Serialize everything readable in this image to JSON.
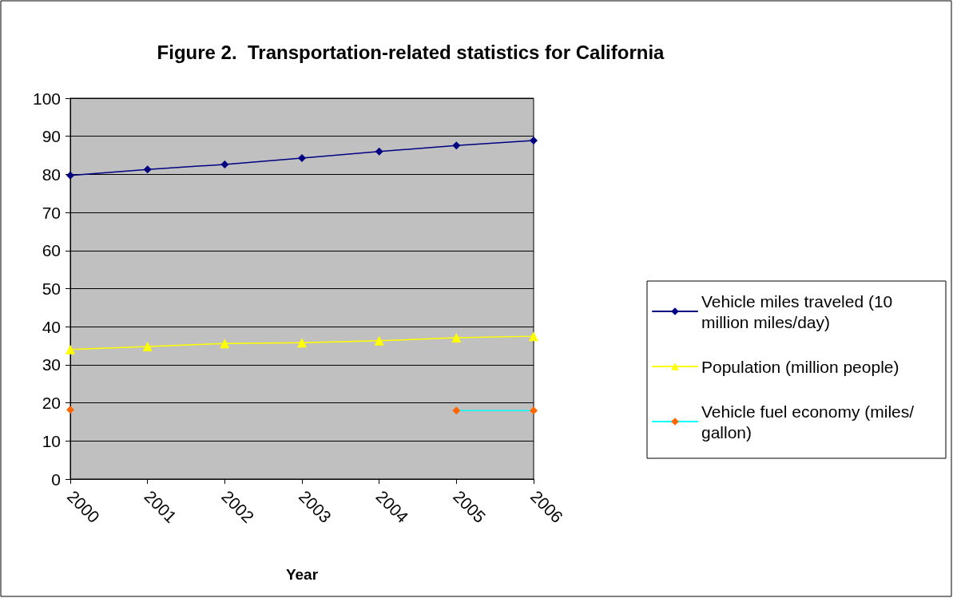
{
  "chart_data": {
    "type": "line",
    "title": "Figure 2.  Transportation-related statistics for California",
    "xlabel": "Year",
    "categories": [
      "2000",
      "2001",
      "2002",
      "2003",
      "2004",
      "2005",
      "2006"
    ],
    "series": [
      {
        "name": "Vehicle miles traveled (10 million miles/day)",
        "color": "#000080",
        "marker": "diamond",
        "values": [
          79.7,
          81.3,
          82.6,
          84.3,
          86.0,
          87.6,
          88.9
        ]
      },
      {
        "name": "Population (million people)",
        "color": "#ffff00",
        "marker": "triangle",
        "values": [
          34.0,
          34.8,
          35.6,
          35.8,
          36.3,
          37.1,
          37.5
        ]
      },
      {
        "name": "Vehicle fuel economy (miles/gallon)",
        "color": "#00ffff",
        "colors": [
          "#ff6600",
          null,
          null,
          null,
          null,
          "#ff6600",
          "#ff6600"
        ],
        "marker": "diamond",
        "values": [
          18.2,
          null,
          null,
          null,
          null,
          18.0,
          18.0
        ]
      }
    ],
    "ylim": [
      0,
      100
    ],
    "yticks": [
      0,
      10,
      20,
      30,
      40,
      50,
      60,
      70,
      80,
      90,
      100
    ],
    "grid": "y",
    "legend": "right"
  }
}
